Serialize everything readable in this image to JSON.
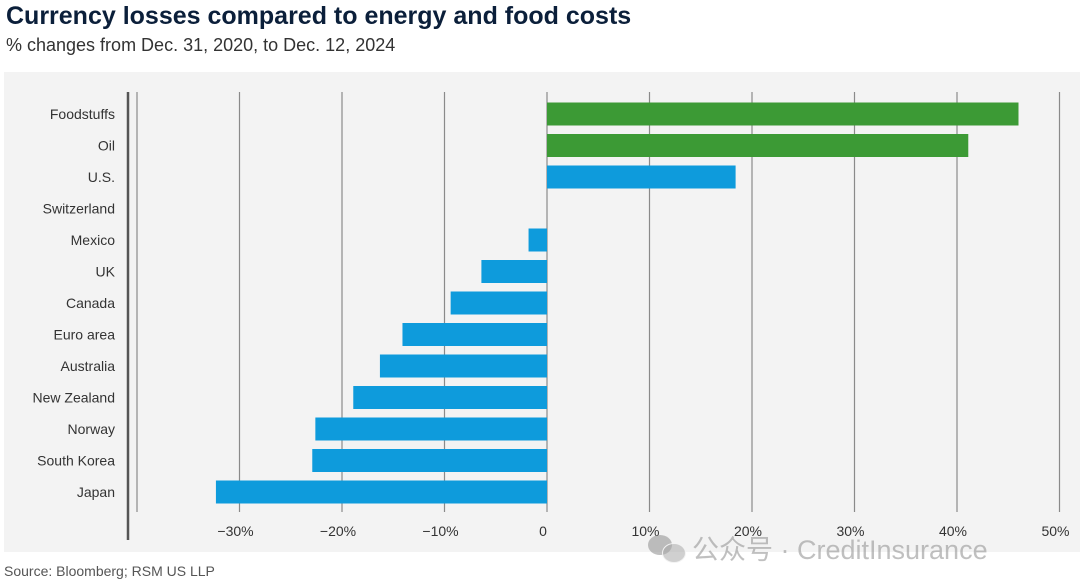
{
  "title": "Currency losses compared to energy and food costs",
  "subtitle": "% changes from Dec. 31, 2020, to Dec. 12, 2024",
  "source": "Source: Bloomberg; RSM US LLP",
  "watermark": {
    "text": "公众号 · CreditInsurance",
    "icon": "wechat-icon"
  },
  "colors": {
    "commodity": "#3c9a35",
    "currency": "#0e9bdc",
    "grid": "#8a8a8a",
    "panel": "#f3f3f3"
  },
  "chart_data": {
    "type": "bar",
    "orientation": "horizontal",
    "title": "Currency losses compared to energy and food costs",
    "subtitle": "% changes from Dec. 31, 2020, to Dec. 12, 2024",
    "xlim": [
      -40,
      50
    ],
    "xticks": [
      -30,
      -20,
      -10,
      0,
      10,
      20,
      30,
      40,
      50
    ],
    "xtick_labels": [
      "−30%",
      "−20%",
      "−10%",
      "0",
      "10%",
      "20%",
      "30%",
      "40%",
      "50%"
    ],
    "grid": true,
    "categories": [
      "Foodstuffs",
      "Oil",
      "U.S.",
      "Switzerland",
      "Mexico",
      "UK",
      "Canada",
      "Euro area",
      "Australia",
      "New Zealand",
      "Norway",
      "South Korea",
      "Japan"
    ],
    "values": [
      46,
      41.1,
      18.4,
      0,
      -1.8,
      -6.4,
      -9.4,
      -14.1,
      -16.3,
      -18.9,
      -22.6,
      -22.9,
      -32.3
    ],
    "groups": [
      "commodity",
      "commodity",
      "currency",
      "currency",
      "currency",
      "currency",
      "currency",
      "currency",
      "currency",
      "currency",
      "currency",
      "currency",
      "currency"
    ]
  }
}
